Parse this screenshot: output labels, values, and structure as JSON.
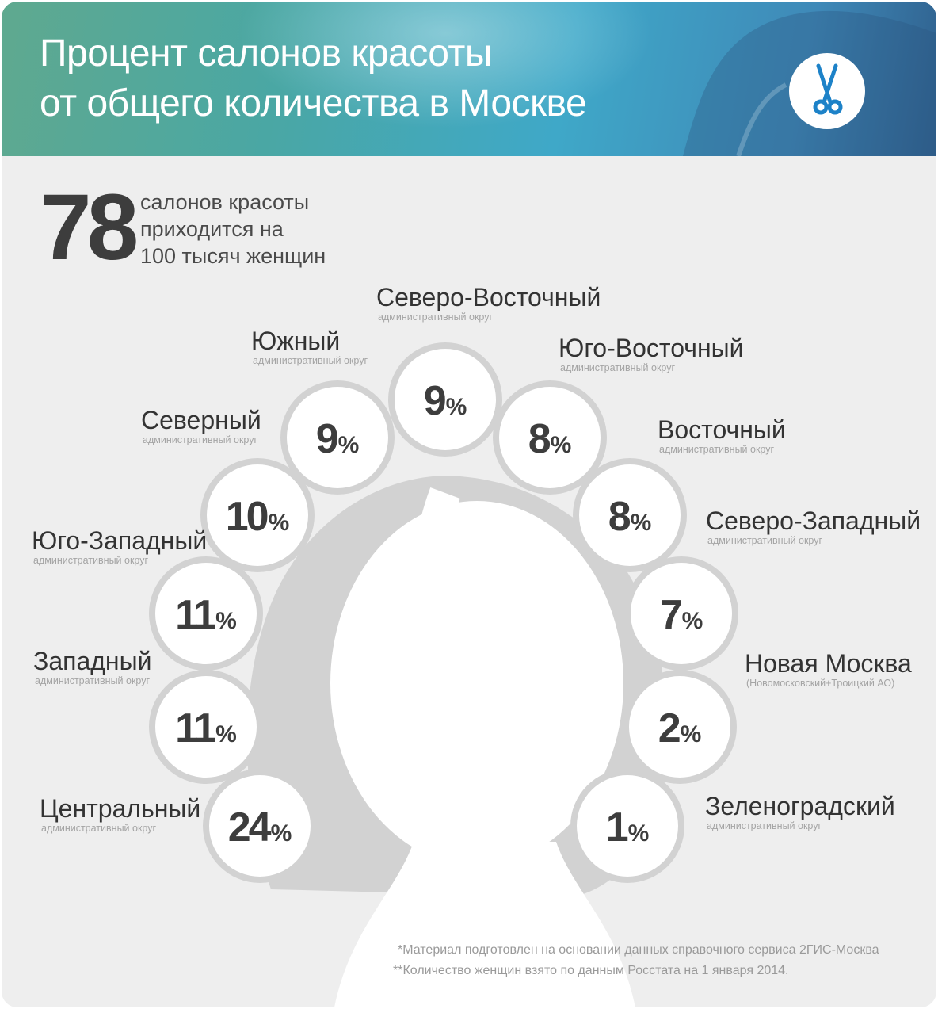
{
  "header": {
    "title_line1": "Процент салонов красоты",
    "title_line2": "от общего количества в Москве",
    "logo_icon": "scissors-icon",
    "accent_color": "#1d82c8"
  },
  "stat": {
    "value": "78",
    "line1": "салонов красоты",
    "line2": "приходится на",
    "line3": "100 тысяч женщин"
  },
  "chart_data": {
    "type": "pie",
    "unit": "%",
    "districts": [
      {
        "name": "Центральный",
        "sub": "административный округ",
        "value": 24
      },
      {
        "name": "Западный",
        "sub": "административный округ",
        "value": 11
      },
      {
        "name": "Юго-Западный",
        "sub": "административный округ",
        "value": 11
      },
      {
        "name": "Северный",
        "sub": "административный округ",
        "value": 10
      },
      {
        "name": "Южный",
        "sub": "административный округ",
        "value": 9
      },
      {
        "name": "Северо-Восточный",
        "sub": "административный округ",
        "value": 9
      },
      {
        "name": "Юго-Восточный",
        "sub": "административный округ",
        "value": 8
      },
      {
        "name": "Восточный",
        "sub": "административный округ",
        "value": 8
      },
      {
        "name": "Северо-Западный",
        "sub": "административный округ",
        "value": 7
      },
      {
        "name": "Новая Москва",
        "sub": "(Новомосковский+Троицкий АО)",
        "value": 2
      },
      {
        "name": "Зеленоградский",
        "sub": "административный округ",
        "value": 1
      }
    ]
  },
  "footnotes": {
    "note1": "*Материал подготовлен на основании данных справочного сервиса 2ГИС-Москва",
    "note2": "**Количество женщин взято по данным Росстата на 1 января 2014."
  }
}
